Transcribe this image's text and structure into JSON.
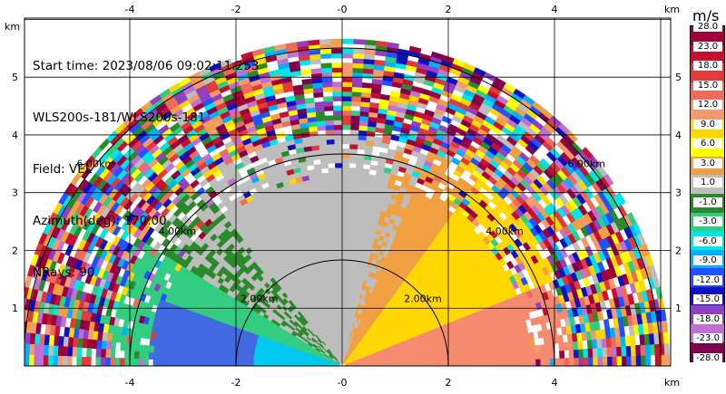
{
  "info": {
    "start_time": "Start time: 2023/08/06 09:02:11.253",
    "instrument": "WLS200s-181/WLS200s-181",
    "field": "Field: VEL",
    "azimuth": "Azimuth(deg): 170.00",
    "nrays": "NRays: 90"
  },
  "axes": {
    "x_ticks": [
      "-4",
      "-2",
      "-0",
      "2",
      "4"
    ],
    "y_ticks": [
      "1",
      "2",
      "3",
      "4",
      "5"
    ],
    "unit_label": "km"
  },
  "range_rings": [
    "2.00km",
    "4.00km",
    "6.00km"
  ],
  "colorbar": {
    "units": "m/s",
    "labels": [
      "28.0",
      "23.0",
      "18.0",
      "15.0",
      "12.0",
      "9.0",
      "6.0",
      "3.0",
      "1.0",
      "-1.0",
      "-3.0",
      "-6.0",
      "-9.0",
      "-12.0",
      "-15.0",
      "-18.0",
      "-23.0",
      "-28.0"
    ],
    "colors": [
      "#a0003a",
      "#c8102e",
      "#e03a3a",
      "#ee6a5a",
      "#f59a6e",
      "#ffd700",
      "#ffff00",
      "#f0a040",
      "#bdbdbd",
      "#2a8a2a",
      "#32cd80",
      "#00e5e5",
      "#00b0ff",
      "#2050ff",
      "#1010c0",
      "#9040c0",
      "#c070d0",
      "#800050"
    ]
  },
  "chart_data": {
    "type": "heatmap",
    "title": "Start time: 2023/08/06 09:02:11.253",
    "xlabel": "km",
    "ylabel": "km",
    "xlim": [
      -6,
      6
    ],
    "ylim": [
      0,
      6
    ],
    "field": "VEL",
    "units": "m/s",
    "range_rings_km": [
      2,
      4,
      6
    ],
    "sectors": [
      {
        "region": "west low-elevation near range",
        "value_ms": -15
      },
      {
        "region": "west mid elevation",
        "value_ms": -6
      },
      {
        "region": "overhead",
        "value_ms": 0
      },
      {
        "region": "east mid elevation",
        "value_ms": 6
      },
      {
        "region": "east low-elevation near range",
        "value_ms": 12
      },
      {
        "region": "beyond 4 km",
        "value_ms": "noise"
      }
    ]
  }
}
